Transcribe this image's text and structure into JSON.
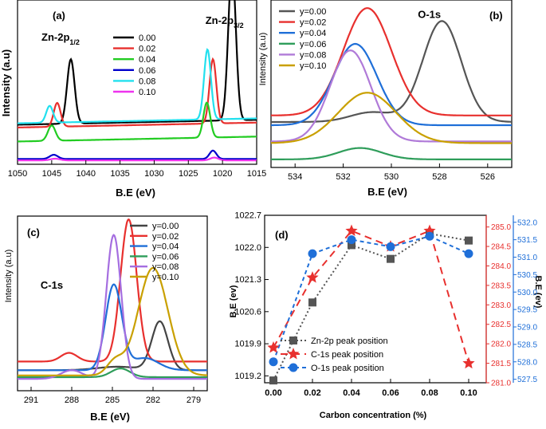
{
  "chart_data": [
    {
      "panel": "(a)",
      "type": "line",
      "xlabel": "B.E (eV)",
      "ylabel": "Intensity (a.u)",
      "xlim": [
        1050,
        1015
      ],
      "xticks": [
        1050,
        1045,
        1040,
        1035,
        1030,
        1025,
        1020,
        1015
      ],
      "annotations": [
        {
          "text": "Zn-2p",
          "sub": "1/2",
          "x": 1046.5,
          "y": 0.86
        },
        {
          "text": "Zn-2p",
          "sub": "3/2",
          "x": 1022.5,
          "y": 0.98
        }
      ],
      "legend": [
        "0.00",
        "0.02",
        "0.04",
        "0.06",
        "0.08",
        "0.10"
      ],
      "series": [
        {
          "name": "0.00",
          "color": "#000000",
          "base": 0.26,
          "slope": -0.001,
          "peaks": [
            [
              1042.2,
              0.46,
              0.55
            ],
            [
              1018.6,
              1.1,
              0.55
            ]
          ]
        },
        {
          "name": "0.02",
          "color": "#e8302e",
          "base": 0.24,
          "slope": -0.001,
          "peaks": [
            [
              1044.2,
              0.17,
              0.5
            ],
            [
              1021.4,
              0.46,
              0.5
            ]
          ]
        },
        {
          "name": "0.04",
          "color": "#22cc22",
          "base": 0.14,
          "slope": -0.001,
          "peaks": [
            [
              1045.0,
              0.11,
              0.55
            ],
            [
              1022.3,
              0.25,
              0.5
            ]
          ]
        },
        {
          "name": "0.06",
          "color": "#0000cc",
          "base": 0.015,
          "slope": 0.0,
          "peaks": [
            [
              1044.7,
              0.03,
              0.6
            ],
            [
              1021.4,
              0.06,
              0.5
            ]
          ]
        },
        {
          "name": "0.08",
          "color": "#22e0ee",
          "base": 0.27,
          "slope": -0.001,
          "peaks": [
            [
              1045.3,
              0.12,
              0.5
            ],
            [
              1022.2,
              0.5,
              0.5
            ]
          ]
        },
        {
          "name": "0.10",
          "color": "#ee33ee",
          "base": 0.005,
          "slope": 0.0,
          "peaks": [
            [
              1044.5,
              0.012,
              0.7
            ],
            [
              1021.2,
              0.02,
              0.6
            ]
          ]
        }
      ]
    },
    {
      "panel": "(b)",
      "type": "line",
      "xlabel": "B.E (eV)",
      "ylabel": "Intensity (a.u)",
      "xlim": [
        535,
        525
      ],
      "xticks": [
        534,
        532,
        530,
        528,
        526
      ],
      "annotations": [
        {
          "text": "O-1s",
          "x": 528.9,
          "y": 0.9
        }
      ],
      "legend": [
        "y=0.00",
        "y=0.02",
        "y=0.04",
        "y=0.06",
        "y=0.08",
        "y=0.10"
      ],
      "series": [
        {
          "name": "y=0.00",
          "color": "#555555",
          "base": 0.26,
          "peaks": [
            [
              527.9,
              0.62,
              0.8
            ],
            [
              530.8,
              0.06,
              0.9
            ]
          ]
        },
        {
          "name": "y=0.02",
          "color": "#e8302e",
          "base": 0.3,
          "peaks": [
            [
              531.0,
              0.66,
              1.0
            ]
          ]
        },
        {
          "name": "y=0.04",
          "color": "#1f6fd8",
          "base": 0.24,
          "peaks": [
            [
              531.5,
              0.5,
              0.9
            ]
          ]
        },
        {
          "name": "y=0.06",
          "color": "#2e9d5a",
          "base": 0.03,
          "peaks": [
            [
              531.3,
              0.07,
              0.9
            ]
          ]
        },
        {
          "name": "y=0.08",
          "color": "#b07ad8",
          "base": 0.14,
          "peaks": [
            [
              531.7,
              0.56,
              0.85
            ]
          ]
        },
        {
          "name": "y=0.10",
          "color": "#c9a000",
          "base": 0.13,
          "peaks": [
            [
              531.0,
              0.31,
              1.2
            ]
          ]
        }
      ]
    },
    {
      "panel": "(c)",
      "type": "line",
      "xlabel": "B.E (eV)",
      "ylabel": "Intensity (a.u)",
      "xlim": [
        292,
        278
      ],
      "xticks": [
        291,
        288,
        285,
        282,
        279
      ],
      "annotations": [
        {
          "text": "C-1s",
          "x": 290.3,
          "y": 0.57
        }
      ],
      "legend": [
        "y=0.00",
        "y=0.02",
        "y=0.04",
        "y=0.06",
        "y=0.08",
        "y=0.10"
      ],
      "series": [
        {
          "name": "y=0.00",
          "color": "#444444",
          "base": 0.1,
          "peaks": [
            [
              281.5,
              0.28,
              0.6
            ],
            [
              284.6,
              0.02,
              1.5
            ]
          ]
        },
        {
          "name": "y=0.02",
          "color": "#e8302e",
          "base": 0.15,
          "peaks": [
            [
              283.8,
              0.82,
              0.6
            ],
            [
              288.2,
              0.05,
              0.6
            ]
          ]
        },
        {
          "name": "y=0.04",
          "color": "#1f6fd8",
          "base": 0.1,
          "peaks": [
            [
              284.9,
              0.49,
              0.6
            ],
            [
              282.6,
              0.07,
              1.0
            ]
          ]
        },
        {
          "name": "y=0.06",
          "color": "#2e9d5a",
          "base": 0.06,
          "peaks": [
            [
              284.4,
              0.05,
              0.7
            ]
          ]
        },
        {
          "name": "y=0.08",
          "color": "#a56ee0",
          "base": 0.05,
          "peaks": [
            [
              284.9,
              0.83,
              0.55
            ],
            [
              288.0,
              0.05,
              0.8
            ]
          ]
        },
        {
          "name": "y=0.10",
          "color": "#c9a000",
          "base": 0.07,
          "peaks": [
            [
              282.0,
              0.62,
              1.1
            ],
            [
              284.8,
              0.08,
              0.6
            ]
          ]
        }
      ]
    },
    {
      "panel": "(d)",
      "type": "line",
      "xlabel": "Carbon concentration (%)",
      "ylabel": "B.E (ev)",
      "ylabel_right": "B.E (ev)",
      "categories": [
        "0.00",
        "0.02",
        "0.04",
        "0.06",
        "0.08",
        "0.10"
      ],
      "ylim_left": [
        1019.05,
        1022.7
      ],
      "yticks_left": [
        "1022.7",
        "1022.0",
        "1021.3",
        "1020.6",
        "1019.9",
        "1019.2"
      ],
      "ylim_c1s": [
        281.0,
        285.3
      ],
      "yticks_c1s": [
        "285.0",
        "284.5",
        "284.0",
        "283.5",
        "283.0",
        "282.5",
        "282.0",
        "281.5",
        "281.0"
      ],
      "ylim_o1s": [
        527.4,
        532.2
      ],
      "yticks_o1s": [
        "532.0",
        "531.5",
        "531.0",
        "530.5",
        "530.0",
        "529.5",
        "529.0",
        "528.5",
        "528.0",
        "527.5"
      ],
      "series": [
        {
          "name": "Zn-2p peak position",
          "color": "#555555",
          "marker": "square",
          "axis": "left",
          "values": [
            1019.1,
            1020.8,
            1022.05,
            1021.75,
            1022.3,
            1022.15
          ]
        },
        {
          "name": "C-1s  peak position",
          "color": "#e8302e",
          "marker": "star",
          "axis": "c1s",
          "values": [
            281.9,
            283.7,
            284.9,
            284.5,
            284.9,
            281.5
          ]
        },
        {
          "name": "O-1s  peak position",
          "color": "#1f6fd8",
          "marker": "circle",
          "axis": "o1s",
          "values": [
            528.0,
            531.1,
            531.5,
            531.3,
            531.6,
            531.1
          ]
        }
      ],
      "colors": {
        "c1s_axis": "#e8302e",
        "o1s_axis": "#1f6fd8"
      }
    }
  ]
}
